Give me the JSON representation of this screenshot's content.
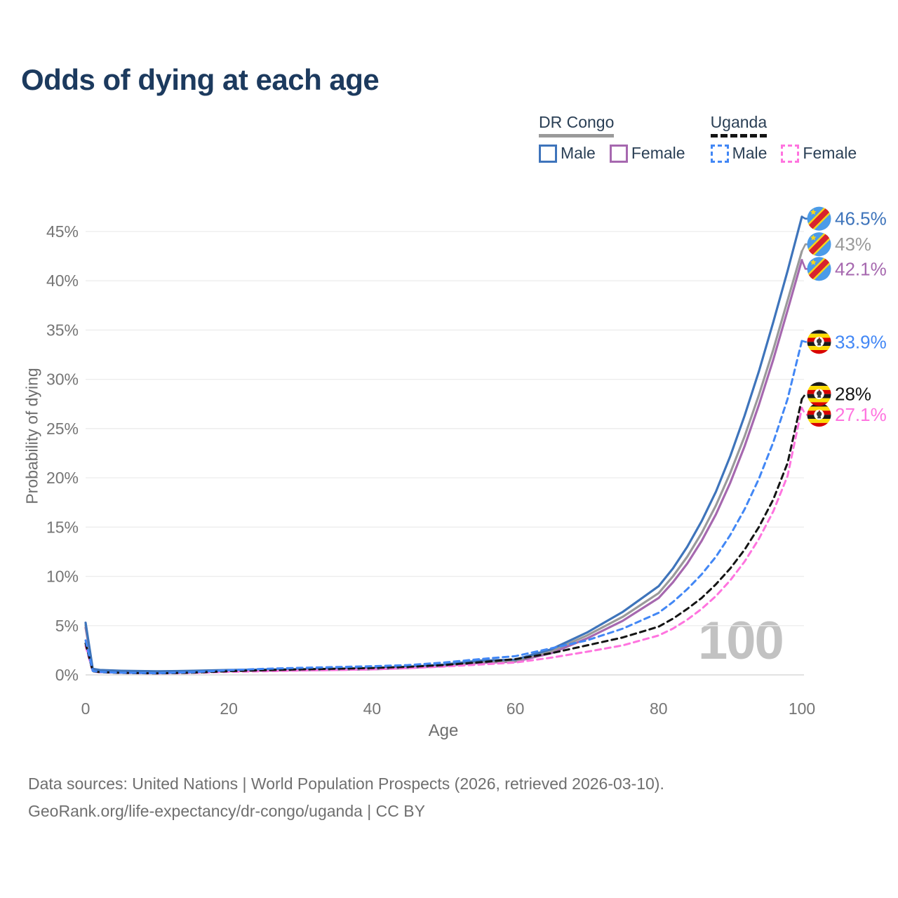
{
  "title": "Odds of dying at each age",
  "watermark": "100",
  "legend": {
    "drc": {
      "label": "DR Congo",
      "line_style": "solid",
      "line_color": "#9a9a9a",
      "male": {
        "label": "Male",
        "color": "#3e74bb"
      },
      "female": {
        "label": "Female",
        "color": "#a668af"
      }
    },
    "uga": {
      "label": "Uganda",
      "line_style": "dashed",
      "line_color": "#141414",
      "male": {
        "label": "Male",
        "color": "#4287f5"
      },
      "female": {
        "label": "Female",
        "color": "#ff74df"
      }
    }
  },
  "axes": {
    "x_label": "Age",
    "y_label": "Probability of dying"
  },
  "footer": {
    "line1": "Data sources: United Nations | World Population Prospects (2026, retrieved 2026-03-10).",
    "line2": "GeoRank.org/life-expectancy/dr-congo/uganda | CC BY"
  },
  "chart_data": {
    "type": "line",
    "title": "Odds of dying at each age",
    "xlabel": "Age",
    "ylabel": "Probability of dying",
    "xlim": [
      0,
      100
    ],
    "ylim_pct": [
      0,
      47
    ],
    "grid": "horizontal",
    "legend_position": "top-right",
    "x_ticks": [
      {
        "v": 0,
        "label": "0"
      },
      {
        "v": 20,
        "label": "20"
      },
      {
        "v": 40,
        "label": "40"
      },
      {
        "v": 60,
        "label": "60"
      },
      {
        "v": 80,
        "label": "80"
      },
      {
        "v": 100,
        "label": "100"
      }
    ],
    "y_ticks": [
      {
        "v": 0,
        "label": "0%"
      },
      {
        "v": 5,
        "label": "5%"
      },
      {
        "v": 10,
        "label": "10%"
      },
      {
        "v": 15,
        "label": "15%"
      },
      {
        "v": 20,
        "label": "20%"
      },
      {
        "v": 25,
        "label": "25%"
      },
      {
        "v": 30,
        "label": "30%"
      },
      {
        "v": 35,
        "label": "35%"
      },
      {
        "v": 40,
        "label": "40%"
      },
      {
        "v": 45,
        "label": "45%"
      }
    ],
    "ages": [
      0,
      1,
      2,
      5,
      10,
      15,
      20,
      25,
      30,
      35,
      40,
      45,
      50,
      55,
      60,
      65,
      70,
      75,
      80,
      82,
      84,
      86,
      88,
      90,
      92,
      94,
      96,
      98,
      100
    ],
    "series": [
      {
        "id": "drc-female",
        "name": "DR Congo Female",
        "color": "#a668af",
        "dashed": false,
        "flag": "drc",
        "end_label": "42.1%",
        "end_value": 42.1,
        "label_pct": 41.2,
        "values": [
          4.8,
          0.57,
          0.47,
          0.39,
          0.33,
          0.35,
          0.41,
          0.44,
          0.47,
          0.51,
          0.57,
          0.7,
          0.9,
          1.22,
          1.35,
          2.2,
          3.7,
          5.5,
          7.8,
          9.4,
          11.3,
          13.6,
          16.3,
          19.5,
          23.2,
          27.4,
          32.0,
          37.0,
          42.1
        ]
      },
      {
        "id": "drc-both",
        "name": "DR Congo Both sexes",
        "color": "#9a9a9a",
        "dashed": false,
        "flag": "drc",
        "end_label": "43%",
        "end_value": 43.0,
        "label_pct": 43.7,
        "values": [
          5.05,
          0.59,
          0.48,
          0.4,
          0.34,
          0.38,
          0.45,
          0.49,
          0.52,
          0.56,
          0.63,
          0.76,
          0.97,
          1.33,
          1.45,
          2.4,
          4.0,
          5.9,
          8.3,
          10.0,
          12.0,
          14.4,
          17.2,
          20.5,
          24.2,
          28.4,
          33.0,
          38.0,
          43.0
        ]
      },
      {
        "id": "drc-male",
        "name": "DR Congo Male",
        "color": "#3e74bb",
        "dashed": false,
        "flag": "drc",
        "end_label": "46.5%",
        "end_value": 46.5,
        "label_pct": 46.3,
        "values": [
          5.3,
          0.62,
          0.5,
          0.42,
          0.36,
          0.42,
          0.5,
          0.54,
          0.57,
          0.61,
          0.68,
          0.82,
          1.05,
          1.45,
          1.55,
          2.6,
          4.3,
          6.4,
          9.0,
          10.8,
          13.0,
          15.6,
          18.6,
          22.2,
          26.3,
          30.8,
          35.8,
          41.0,
          46.5
        ]
      },
      {
        "id": "uga-female",
        "name": "Uganda Female",
        "color": "#ff74df",
        "dashed": true,
        "flag": "uga",
        "end_label": "27.1%",
        "end_value": 27.1,
        "label_pct": 26.4,
        "values": [
          2.95,
          0.35,
          0.26,
          0.2,
          0.15,
          0.2,
          0.31,
          0.38,
          0.44,
          0.5,
          0.57,
          0.68,
          0.85,
          1.05,
          1.25,
          1.75,
          2.35,
          3.0,
          4.0,
          4.7,
          5.6,
          6.7,
          8.0,
          9.6,
          11.5,
          13.8,
          16.6,
          20.2,
          27.1
        ]
      },
      {
        "id": "uga-both",
        "name": "Uganda Both sexes",
        "color": "#141414",
        "dashed": true,
        "flag": "uga",
        "end_label": "28%",
        "end_value": 28.0,
        "label_pct": 28.5,
        "values": [
          3.2,
          0.37,
          0.28,
          0.21,
          0.16,
          0.23,
          0.38,
          0.48,
          0.56,
          0.63,
          0.7,
          0.82,
          1.0,
          1.28,
          1.6,
          2.2,
          3.0,
          3.8,
          4.9,
          5.7,
          6.7,
          7.8,
          9.2,
          10.8,
          12.7,
          15.0,
          17.8,
          21.5,
          28.0
        ]
      },
      {
        "id": "uga-male",
        "name": "Uganda Male",
        "color": "#4287f5",
        "dashed": true,
        "flag": "uga",
        "end_label": "33.9%",
        "end_value": 33.9,
        "label_pct": 33.8,
        "values": [
          3.5,
          0.4,
          0.3,
          0.22,
          0.18,
          0.28,
          0.48,
          0.62,
          0.72,
          0.8,
          0.88,
          1.0,
          1.25,
          1.6,
          1.9,
          2.7,
          3.5,
          4.7,
          6.3,
          7.4,
          8.7,
          10.2,
          12.0,
          14.2,
          16.8,
          19.9,
          23.6,
          28.0,
          33.9
        ]
      }
    ]
  }
}
